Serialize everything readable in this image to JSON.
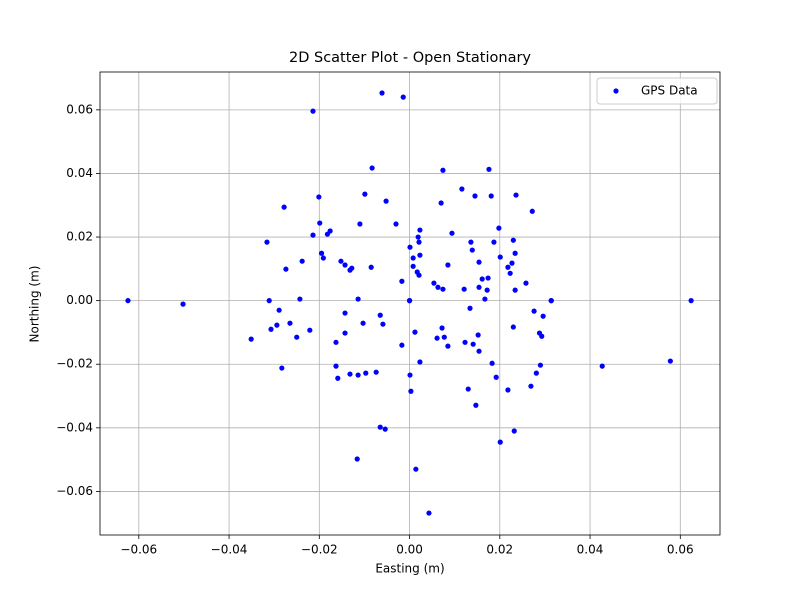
{
  "chart_data": {
    "type": "scatter",
    "title": "2D Scatter Plot - Open Stationary",
    "xlabel": "Easting (m)",
    "ylabel": "Northing (m)",
    "xlim": [
      -0.0686,
      0.0688
    ],
    "ylim": [
      -0.0737,
      0.0719
    ],
    "xticks": [
      {
        "value": -0.06,
        "label": "−0.06"
      },
      {
        "value": -0.04,
        "label": "−0.04"
      },
      {
        "value": -0.02,
        "label": "−0.02"
      },
      {
        "value": 0,
        "label": "0.00"
      },
      {
        "value": 0.02,
        "label": "0.02"
      },
      {
        "value": 0.04,
        "label": "0.04"
      },
      {
        "value": 0.06,
        "label": "0.06"
      }
    ],
    "yticks": [
      {
        "value": -0.06,
        "label": "−0.06"
      },
      {
        "value": -0.04,
        "label": "−0.04"
      },
      {
        "value": -0.02,
        "label": "−0.02"
      },
      {
        "value": 0,
        "label": "0.00"
      },
      {
        "value": 0.02,
        "label": "0.02"
      },
      {
        "value": 0.04,
        "label": "0.04"
      },
      {
        "value": 0.06,
        "label": "0.06"
      }
    ],
    "grid": true,
    "legend": "upper right",
    "series": [
      {
        "name": "GPS Data",
        "color": "blue",
        "x": [
          -0.0624,
          -0.0502,
          -0.0351,
          -0.0214,
          -0.0061,
          -0.0014,
          -0.0083,
          0.0074,
          0.0176,
          0.0116,
          0.0145,
          0.0181,
          0.0236,
          -0.0099,
          -0.0052,
          0.007,
          0.0272,
          -0.0278,
          -0.0201,
          -0.0199,
          -0.011,
          -0.003,
          0.0023,
          0.0094,
          0.0198,
          -0.0214,
          -0.0182,
          -0.0176,
          -0.0316,
          0.0019,
          0.0021,
          0.0136,
          0.0187,
          0.023,
          0.0001,
          0.0139,
          0.0023,
          -0.0195,
          -0.0191,
          0.0008,
          0.0201,
          0.0234,
          -0.0238,
          -0.0152,
          -0.0143,
          -0.0132,
          -0.0128,
          -0.0085,
          -0.0274,
          0.0008,
          0.0085,
          0.0154,
          0.0218,
          0.0227,
          0.0223,
          0.0017,
          0.0021,
          0.0161,
          0.0174,
          -0.0017,
          0.0258,
          0.0054,
          0.0063,
          0.0074,
          0.0121,
          0.0154,
          0.0172,
          0.0234,
          -0.0243,
          -0.0114,
          0.0167,
          0,
          0,
          -0.0311,
          0.0314,
          0.0314,
          0.0624,
          0.0134,
          -0.0289,
          0.0276,
          0.0296,
          -0.0143,
          -0.0065,
          -0.0265,
          -0.0103,
          -0.0059,
          -0.0294,
          -0.0307,
          -0.0221,
          0.0072,
          0.023,
          0.0012,
          -0.0143,
          0.0288,
          0.0293,
          0.0152,
          -0.025,
          0.0061,
          0.0077,
          0.0123,
          -0.0163,
          0.0141,
          0.0085,
          -0.0017,
          0.0154,
          0.0023,
          0.0183,
          0.029,
          -0.0163,
          -0.0283,
          0.0578,
          0.0427,
          -0.0074,
          -0.0097,
          -0.0132,
          -0.0114,
          0.0281,
          0.0001,
          -0.0159,
          0.0192,
          0.0269,
          0.013,
          0.0218,
          0.0003,
          0.0147,
          -0.0065,
          -0.0054,
          0.0232,
          0.0201,
          -0.0116,
          0.0014,
          0.0043
        ],
        "values": [
          0,
          -0.0011,
          -0.0121,
          0.0596,
          0.0653,
          0.064,
          0.0417,
          0.041,
          0.0413,
          0.0351,
          0.0329,
          0.0329,
          0.0332,
          0.0335,
          0.0313,
          0.0307,
          0.0281,
          0.0294,
          0.0326,
          0.0244,
          0.0241,
          0.0241,
          0.0222,
          0.0212,
          0.0228,
          0.0206,
          0.0209,
          0.0219,
          0.0184,
          0.02,
          0.0184,
          0.0184,
          0.0184,
          0.019,
          0.0168,
          0.0159,
          0.0143,
          0.0149,
          0.0134,
          0.0134,
          0.0137,
          0.0149,
          0.0124,
          0.0124,
          0.0112,
          0.0096,
          0.0102,
          0.0105,
          0.0099,
          0.0108,
          0.0112,
          0.0121,
          0.0105,
          0.0118,
          0.0086,
          0.009,
          0.008,
          0.0068,
          0.0071,
          0.0061,
          0.0055,
          0.0055,
          0.0042,
          0.0036,
          0.0036,
          0.0042,
          0.0033,
          0.0033,
          0.0005,
          0.0005,
          0.0005,
          0,
          0,
          0,
          0,
          0,
          0,
          -0.0024,
          -0.003,
          -0.0033,
          -0.0049,
          -0.0039,
          -0.0046,
          -0.0071,
          -0.0071,
          -0.0074,
          -0.0077,
          -0.009,
          -0.0093,
          -0.0086,
          -0.0083,
          -0.0099,
          -0.0102,
          -0.0102,
          -0.0112,
          -0.0108,
          -0.0115,
          -0.0118,
          -0.0115,
          -0.0131,
          -0.0131,
          -0.0137,
          -0.0143,
          -0.014,
          -0.0159,
          -0.0193,
          -0.0197,
          -0.0203,
          -0.0206,
          -0.0212,
          -0.019,
          -0.0206,
          -0.0225,
          -0.0228,
          -0.0231,
          -0.0234,
          -0.0228,
          -0.0234,
          -0.0244,
          -0.0241,
          -0.0269,
          -0.0278,
          -0.0281,
          -0.0285,
          -0.0329,
          -0.0398,
          -0.0404,
          -0.041,
          -0.0445,
          -0.0498,
          -0.053,
          -0.0668
        ]
      }
    ]
  }
}
